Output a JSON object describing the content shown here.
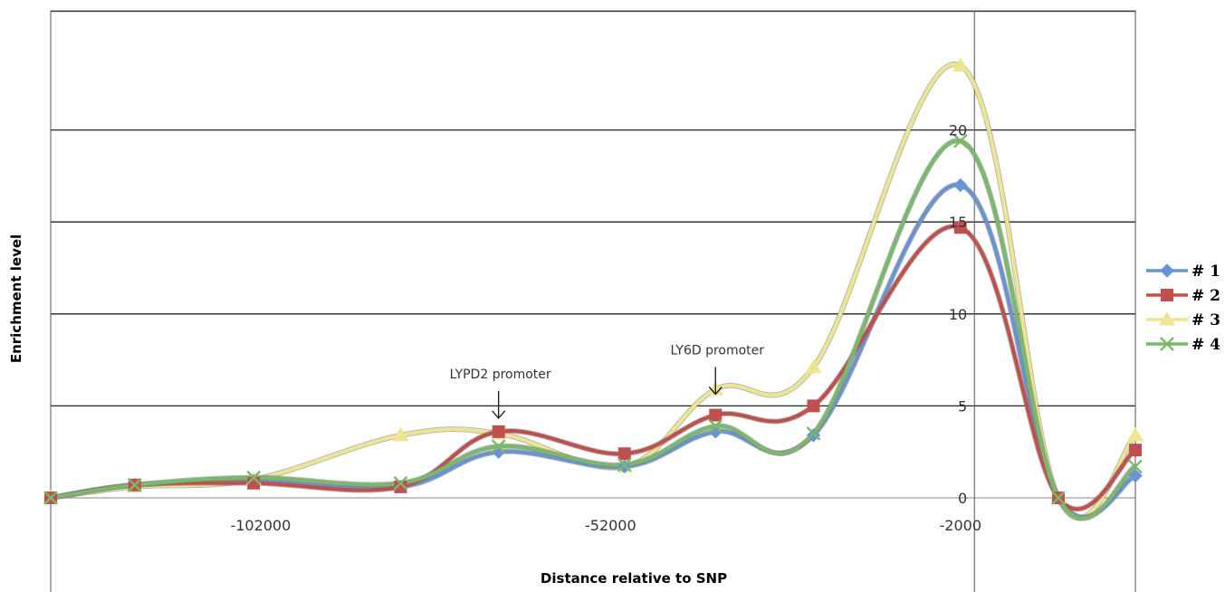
{
  "chart_data": {
    "type": "line",
    "xlabel": "Distance relative to SNP",
    "ylabel": "Enrichment level",
    "ylim": [
      0,
      25
    ],
    "xlim": [
      -132000,
      23000
    ],
    "x_ticks": [
      -102000,
      -52000,
      -2000
    ],
    "x_tick_labels": [
      "-102000",
      "-52000",
      "-2000"
    ],
    "y_ticks": [
      0,
      5,
      10,
      15,
      20
    ],
    "y_tick_labels": [
      "0",
      "5",
      "10",
      "15",
      "20"
    ],
    "grid": "horizontal",
    "legend_position": "right",
    "x": [
      -132000,
      -120000,
      -103000,
      -82000,
      -68000,
      -50000,
      -37000,
      -23000,
      -2000,
      12000,
      23000
    ],
    "series": [
      {
        "name": "# 1",
        "color": "#6a93d4",
        "marker": "diamond",
        "values": [
          0,
          0.7,
          0.9,
          0.6,
          2.5,
          1.7,
          3.6,
          3.4,
          17,
          0,
          1.2
        ]
      },
      {
        "name": "# 2",
        "color": "#c0504d",
        "marker": "square",
        "values": [
          0,
          0.7,
          0.8,
          0.6,
          3.6,
          2.4,
          4.5,
          5.0,
          14.7,
          0,
          2.6
        ]
      },
      {
        "name": "# 3",
        "color": "#ede58f",
        "marker": "triangle",
        "values": [
          0,
          0.6,
          1.0,
          3.4,
          3.5,
          1.7,
          5.9,
          7.1,
          23.5,
          0,
          3.4
        ]
      },
      {
        "name": "# 4",
        "color": "#7ab86a",
        "marker": "x",
        "values": [
          0,
          0.7,
          1.1,
          0.8,
          2.8,
          1.8,
          3.9,
          3.5,
          19.4,
          0,
          1.7
        ]
      }
    ],
    "annotations": [
      {
        "text": "LYPD2 promoter",
        "x": -68000,
        "y": 6.5
      },
      {
        "text": "LY6D promoter",
        "x": -37000,
        "y": 7.8
      }
    ]
  }
}
